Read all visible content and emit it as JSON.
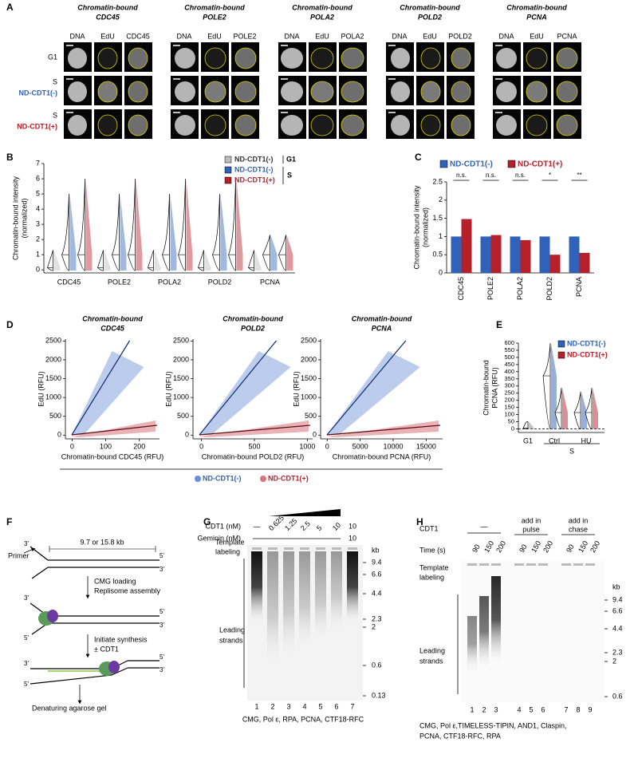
{
  "labels": {
    "a": "A",
    "b": "B",
    "c": "C",
    "d": "D",
    "e": "E",
    "f": "F",
    "g": "G",
    "h": "H"
  },
  "panel_a": {
    "title_prefix": "Chromatin-bound",
    "proteins": [
      "CDC45",
      "POLE2",
      "POLA2",
      "POLD2",
      "PCNA"
    ],
    "channels": [
      "DNA",
      "EdU"
    ],
    "rows": [
      "G1",
      "S",
      "S"
    ],
    "conditions": [
      "ND-CDT1(-)",
      "ND-CDT1(+)"
    ]
  },
  "panel_b": {
    "ylabel": [
      "Chromatin-bound intensity",
      "(normalized)"
    ],
    "ylim": [
      -0.2,
      7
    ],
    "yticks": [
      0,
      1,
      2,
      3,
      4,
      5,
      6,
      7
    ],
    "categories": [
      "CDC45",
      "POLE2",
      "POLA2",
      "POLD2",
      "PCNA"
    ],
    "legend": [
      "ND-CDT1(-)",
      "ND-CDT1(-)",
      "ND-CDT1(+)"
    ],
    "colors": [
      "#bdbdbd",
      "#2f62b8",
      "#b5202b"
    ],
    "groups": [
      "G1",
      "S"
    ]
  },
  "panel_c": {
    "type": "bar",
    "ylabel": [
      "Chromatin-bound intensity",
      "(normalized)"
    ],
    "ylim": [
      0,
      2.5
    ],
    "yticks": [
      0,
      0.5,
      1,
      1.5,
      2,
      2.5
    ],
    "categories": [
      "CDC45",
      "POLE2",
      "POLA2",
      "POLD2",
      "PCNA"
    ],
    "series": [
      {
        "name": "ND-CDT1(-)",
        "color": "#2f62b8",
        "values": [
          1,
          1,
          1,
          1,
          1
        ]
      },
      {
        "name": "ND-CDT1(+)",
        "color": "#b5202b",
        "values": [
          1.48,
          1.04,
          0.9,
          0.5,
          0.55
        ]
      }
    ],
    "significance": [
      "n.s.",
      "n.s.",
      "n.s.",
      "*",
      "**"
    ]
  },
  "panel_d": {
    "type": "scatter",
    "title_prefix": "Chromatin-bound",
    "ylabel": "EdU (RFU)",
    "ylim": [
      -100,
      2550
    ],
    "yticks": [
      0,
      500,
      1000,
      1500,
      2000,
      2500
    ],
    "plots": [
      {
        "title": "CDC45",
        "xlabel": "Chromatin-bound CDC45 (RFU)",
        "xlim": [
          -20,
          260
        ],
        "xticks": [
          0,
          100,
          200
        ]
      },
      {
        "title": "POLD2",
        "xlabel": "Chromatin-bound POLD2 (RFU)",
        "xlim": [
          -80,
          1050
        ],
        "xticks": [
          0,
          500,
          1000
        ]
      },
      {
        "title": "PCNA",
        "xlabel": "Chromatin-bound PCNA (RFU)",
        "xlim": [
          -1000,
          17500
        ],
        "xticks": [
          0,
          5000,
          10000,
          15000
        ]
      }
    ],
    "legend": [
      "ND-CDT1(-)",
      "ND-CDT1(+)"
    ],
    "colors": [
      "#6a8fd6",
      "#d9737a"
    ]
  },
  "panel_e": {
    "ylabel": [
      "Chromatin-bound",
      "PCNA (RFU)"
    ],
    "ylim": [
      -25,
      600
    ],
    "yticks": [
      0,
      50,
      100,
      150,
      200,
      250,
      300,
      350,
      400,
      450,
      500,
      550,
      600
    ],
    "categories": [
      "G1",
      "Ctrl",
      "HU"
    ],
    "group": "S",
    "legend": [
      "ND-CDT1(-)",
      "ND-CDT1(+)"
    ],
    "colors": [
      "#2f62b8",
      "#b5202b"
    ]
  },
  "panel_f": {
    "primer_end": "3'",
    "primer": "Primer",
    "length": "9.7 or 15.8 kb",
    "five": "5'",
    "three": "3'",
    "step1": [
      "CMG loading",
      "Replisome assembly"
    ],
    "step2": [
      "Initiate synthesis",
      "± CDT1"
    ],
    "readout": "Denaturing agarose gel"
  },
  "panel_g": {
    "cdt1_label": "CDT1 (nM)",
    "cdt1": [
      "—",
      "0.625",
      "1.25",
      "2.5",
      "5",
      "10",
      "10"
    ],
    "geminin_label": "Geminin (nM)",
    "geminin": [
      "—",
      "10"
    ],
    "template": [
      "Template",
      "labeling"
    ],
    "leading": [
      "Leading",
      "strands"
    ],
    "kb": "kb",
    "markers": [
      "9.4",
      "6.6",
      "4.4",
      "2.3",
      "2",
      "0.6",
      "0.13"
    ],
    "lanes": [
      1,
      2,
      3,
      4,
      5,
      6,
      7
    ],
    "caption": "CMG, Pol ε, RPA, PCNA, CTF18-RFC"
  },
  "panel_h": {
    "cdt1_label": "CDT1",
    "none": "—",
    "pulse": [
      "add in",
      "pulse"
    ],
    "chase": [
      "add in",
      "chase"
    ],
    "time_label": "Time (s)",
    "times": [
      90,
      150,
      200
    ],
    "template": [
      "Template",
      "labeling"
    ],
    "leading": [
      "Leading",
      "strands"
    ],
    "kb": "kb",
    "markers": [
      "9.4",
      "6.6",
      "4.4",
      "2.3",
      "2",
      "0.6"
    ],
    "lanes": [
      1,
      2,
      3,
      4,
      5,
      6,
      7,
      8,
      9
    ],
    "caption": [
      "CMG, Pol ε,TIMELESS-TIPIN, AND1, Claspin,",
      "PCNA, CTF18-RFC, RPA"
    ]
  }
}
